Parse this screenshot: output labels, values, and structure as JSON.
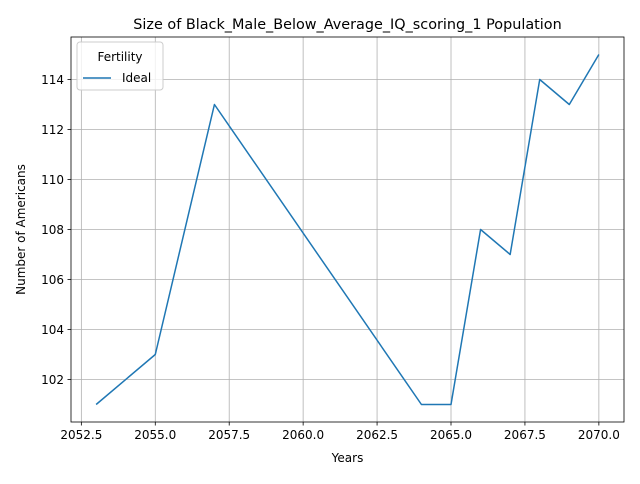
{
  "chart_data": {
    "type": "line",
    "title": "Size of Black_Male_Below_Average_IQ_scoring_1 Population",
    "xlabel": "Years",
    "ylabel": "Number of Americans",
    "xlim": [
      2052.15,
      2070.85
    ],
    "ylim": [
      100.3,
      115.7
    ],
    "xticks": [
      2052.5,
      2055.0,
      2057.5,
      2060.0,
      2062.5,
      2065.0,
      2067.5,
      2070.0
    ],
    "xtick_labels": [
      "2052.5",
      "2055.0",
      "2057.5",
      "2060.0",
      "2062.5",
      "2065.0",
      "2067.5",
      "2070.0"
    ],
    "yticks": [
      102,
      104,
      106,
      108,
      110,
      112,
      114
    ],
    "ytick_labels": [
      "102",
      "104",
      "106",
      "108",
      "110",
      "112",
      "114"
    ],
    "grid": true,
    "legend": {
      "title": "Fertility",
      "placement": "upper-left"
    },
    "series": [
      {
        "name": "Ideal",
        "color": "#1f77b4",
        "x": [
          2053,
          2055,
          2057,
          2064,
          2065,
          2066,
          2067,
          2068,
          2069,
          2070
        ],
        "y": [
          101,
          103,
          113,
          101,
          101,
          108,
          107,
          114,
          113,
          115
        ]
      }
    ]
  }
}
